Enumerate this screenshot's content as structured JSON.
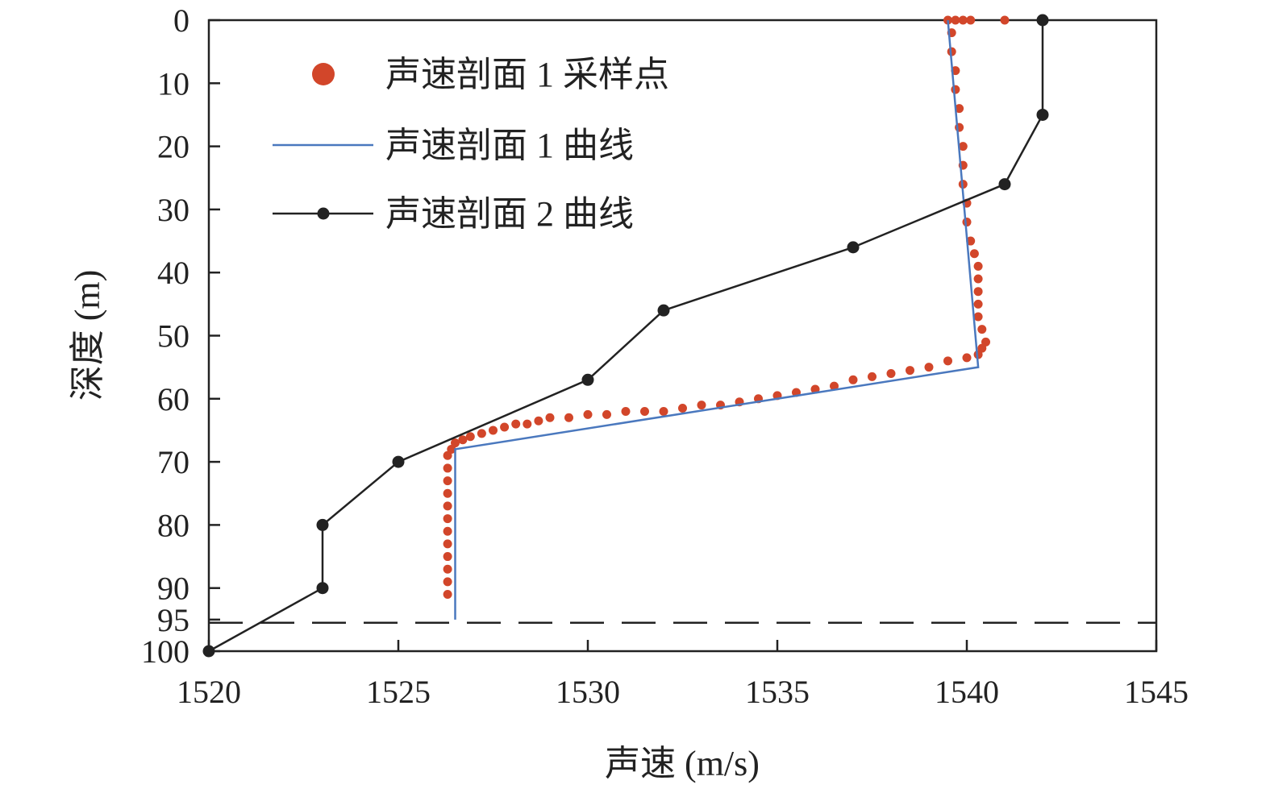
{
  "chart_data": {
    "type": "line",
    "xlabel": "声速 (m/s)",
    "ylabel": "深度 (m)",
    "xlim": [
      1520,
      1545
    ],
    "ylim": [
      0,
      100
    ],
    "y_inverted": true,
    "x_ticks": [
      "1520",
      "1525",
      "1530",
      "1535",
      "1540",
      "1545"
    ],
    "y_ticks": [
      "0",
      "10",
      "20",
      "30",
      "40",
      "50",
      "60",
      "70",
      "80",
      "90",
      "95",
      "100"
    ],
    "legend_position": "top-left",
    "grid": false,
    "reference_line": {
      "style": "dashed",
      "depth": 95.5
    },
    "series": [
      {
        "name": "声速剖面 1 采样点",
        "kind": "scatter",
        "color": "#d2462a",
        "points": [
          [
            1539.5,
            0
          ],
          [
            1539.7,
            0
          ],
          [
            1539.9,
            0
          ],
          [
            1540.1,
            0
          ],
          [
            1541.0,
            0
          ],
          [
            1539.6,
            2
          ],
          [
            1539.6,
            5
          ],
          [
            1539.7,
            8
          ],
          [
            1539.7,
            11
          ],
          [
            1539.8,
            14
          ],
          [
            1539.8,
            17
          ],
          [
            1539.9,
            20
          ],
          [
            1539.9,
            23
          ],
          [
            1539.9,
            26
          ],
          [
            1540.0,
            29
          ],
          [
            1540.0,
            32
          ],
          [
            1540.1,
            35
          ],
          [
            1540.2,
            37
          ],
          [
            1540.3,
            39
          ],
          [
            1540.3,
            41
          ],
          [
            1540.3,
            43
          ],
          [
            1540.3,
            45
          ],
          [
            1540.3,
            47
          ],
          [
            1540.4,
            49
          ],
          [
            1540.5,
            51
          ],
          [
            1540.4,
            52
          ],
          [
            1540.3,
            53
          ],
          [
            1540.0,
            53.5
          ],
          [
            1539.5,
            54
          ],
          [
            1539.0,
            55
          ],
          [
            1538.5,
            55.5
          ],
          [
            1538.0,
            56
          ],
          [
            1537.5,
            56.5
          ],
          [
            1537.0,
            57
          ],
          [
            1536.5,
            58
          ],
          [
            1536.0,
            58.5
          ],
          [
            1535.5,
            59
          ],
          [
            1535.0,
            59.5
          ],
          [
            1534.5,
            60
          ],
          [
            1534.0,
            60.5
          ],
          [
            1533.5,
            61
          ],
          [
            1533.0,
            61
          ],
          [
            1532.5,
            61.5
          ],
          [
            1532.0,
            62
          ],
          [
            1531.5,
            62
          ],
          [
            1531.0,
            62
          ],
          [
            1530.5,
            62.5
          ],
          [
            1530.0,
            62.5
          ],
          [
            1529.5,
            63
          ],
          [
            1529.0,
            63
          ],
          [
            1528.7,
            63.5
          ],
          [
            1528.4,
            64
          ],
          [
            1528.1,
            64
          ],
          [
            1527.8,
            64.5
          ],
          [
            1527.5,
            65
          ],
          [
            1527.2,
            65.5
          ],
          [
            1526.9,
            66
          ],
          [
            1526.7,
            66.5
          ],
          [
            1526.5,
            67
          ],
          [
            1526.4,
            68
          ],
          [
            1526.3,
            69
          ],
          [
            1526.3,
            71
          ],
          [
            1526.3,
            73
          ],
          [
            1526.3,
            75
          ],
          [
            1526.3,
            77
          ],
          [
            1526.3,
            79
          ],
          [
            1526.3,
            81
          ],
          [
            1526.3,
            83
          ],
          [
            1526.3,
            85
          ],
          [
            1526.3,
            87
          ],
          [
            1526.3,
            89
          ],
          [
            1526.3,
            91
          ]
        ]
      },
      {
        "name": "声速剖面 1 曲线",
        "kind": "line",
        "color": "#4a78be",
        "points": [
          [
            1539.5,
            0
          ],
          [
            1540.3,
            55
          ],
          [
            1526.5,
            68
          ],
          [
            1526.5,
            95
          ]
        ]
      },
      {
        "name": "声速剖面 2 曲线",
        "kind": "line-marker",
        "color": "#222222",
        "points": [
          [
            1542,
            0
          ],
          [
            1542,
            15
          ],
          [
            1541,
            26
          ],
          [
            1537,
            36
          ],
          [
            1532,
            46
          ],
          [
            1530,
            57
          ],
          [
            1525,
            70
          ],
          [
            1523,
            80
          ],
          [
            1523,
            90
          ],
          [
            1520,
            100
          ]
        ]
      }
    ]
  }
}
